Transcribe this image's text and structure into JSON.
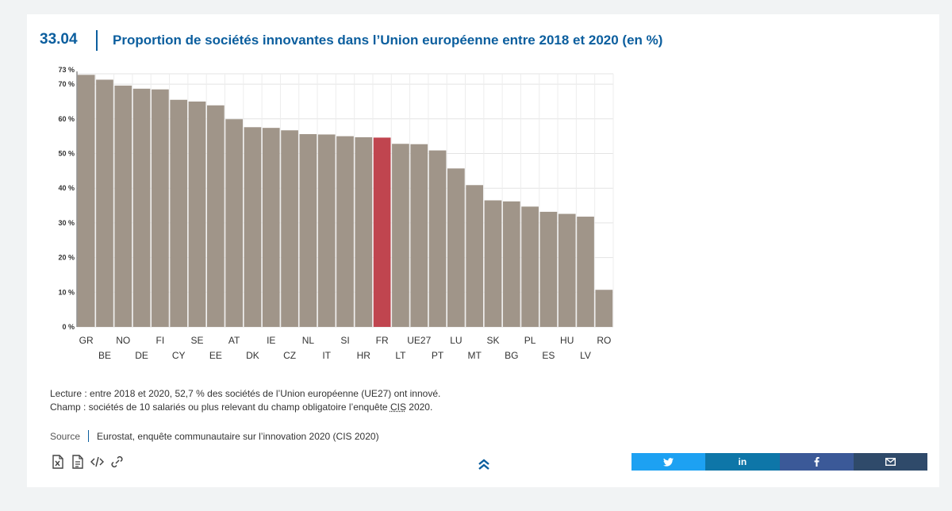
{
  "figure": {
    "number": "33.04",
    "title": "Proportion de sociétés innovantes dans l’Union européenne entre 2018 et 2020 (en %)"
  },
  "chart_data": {
    "type": "bar",
    "categories": [
      "GR",
      "BE",
      "NO",
      "DE",
      "FI",
      "CY",
      "SE",
      "EE",
      "AT",
      "DK",
      "IE",
      "CZ",
      "NL",
      "IT",
      "SI",
      "HR",
      "FR",
      "LT",
      "UE27",
      "PT",
      "LU",
      "MT",
      "SK",
      "BG",
      "PL",
      "ES",
      "HU",
      "LV",
      "RO"
    ],
    "values": [
      72.7,
      71.3,
      69.6,
      68.7,
      68.5,
      65.5,
      65.0,
      63.9,
      59.9,
      57.6,
      57.4,
      56.7,
      55.6,
      55.5,
      55.0,
      54.7,
      54.6,
      52.8,
      52.7,
      50.9,
      45.7,
      40.9,
      36.5,
      36.2,
      34.7,
      33.2,
      32.6,
      31.8,
      10.7
    ],
    "highlight": "FR",
    "ylim": [
      0,
      73
    ],
    "yticks": [
      0,
      10,
      20,
      30,
      40,
      50,
      60,
      70,
      73
    ],
    "ytick_labels": [
      "0 %",
      "10 %",
      "20 %",
      "30 %",
      "40 %",
      "50 %",
      "60 %",
      "70 %",
      "73 %"
    ],
    "grid": true,
    "bar_color": "#a09589",
    "highlight_color": "#c0454f",
    "xlabel": "",
    "ylabel": ""
  },
  "notes": {
    "lecture": "Lecture : entre 2018 et 2020, 52,7 % des sociétés de l’Union européenne (UE27) ont innové.",
    "champ_prefix": "Champ : sociétés de 10 salariés ou plus relevant du champ obligatoire l’enquête ",
    "champ_abbr": "CIS",
    "champ_suffix": " 2020."
  },
  "source": {
    "label": "Source",
    "text": "Eurostat, enquête communautaire sur l’innovation 2020 (CIS 2020)"
  },
  "tools": [
    "excel-download-icon",
    "document-download-icon",
    "embed-code-icon",
    "link-icon"
  ],
  "share": {
    "colors": {
      "twitter": "#1da1f2",
      "linkedin": "#0e76a8",
      "facebook": "#3b5998",
      "email": "#2f4a6a"
    },
    "linkedin_label": "in"
  },
  "colors": {
    "accent": "#0b5e9e"
  }
}
